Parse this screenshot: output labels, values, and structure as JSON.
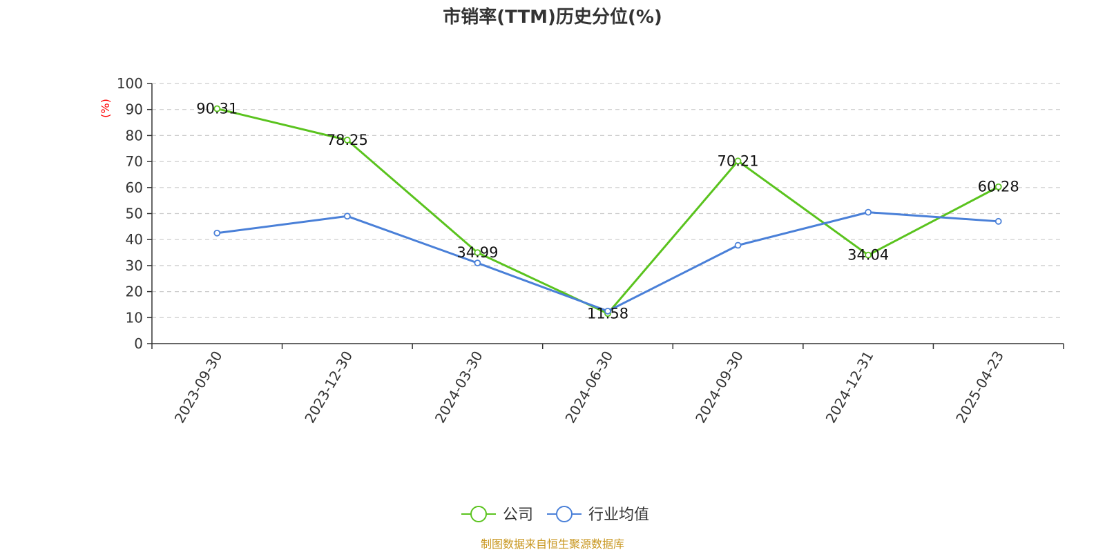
{
  "chart_data": {
    "type": "line",
    "title": "市销率(TTM)历史分位(%)",
    "ylabel": "(%)",
    "xlabel": "",
    "categories": [
      "2023-09-30",
      "2023-12-30",
      "2024-03-30",
      "2024-06-30",
      "2024-09-30",
      "2024-12-31",
      "2025-04-23"
    ],
    "ylim": [
      0,
      100
    ],
    "yticks": [
      0,
      10,
      20,
      30,
      40,
      50,
      60,
      70,
      80,
      90,
      100
    ],
    "grid": true,
    "legend_position": "bottom",
    "series": [
      {
        "name": "公司",
        "color": "#5ac31e",
        "values": [
          90.31,
          78.25,
          34.99,
          11.58,
          70.21,
          34.04,
          60.28
        ],
        "show_labels": true
      },
      {
        "name": "行业均值",
        "color": "#4a80d8",
        "values": [
          42.5,
          49.0,
          31.0,
          12.5,
          37.8,
          50.5,
          47.0
        ],
        "show_labels": false
      }
    ],
    "source": "制图数据来自恒生聚源数据库"
  }
}
